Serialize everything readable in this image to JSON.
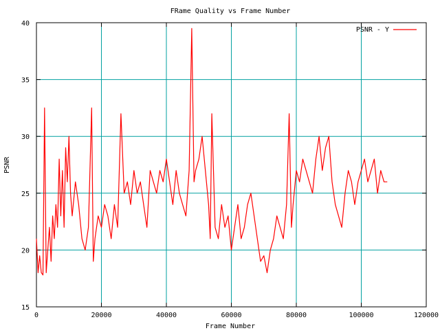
{
  "chart_data": {
    "type": "line",
    "title": "FRame Quality vs Frame Number",
    "xlabel": "Frame Number",
    "ylabel": "PSNR",
    "xlim": [
      0,
      120000
    ],
    "ylim": [
      15,
      40
    ],
    "x_ticks": [
      0,
      20000,
      40000,
      60000,
      80000,
      100000,
      120000
    ],
    "y_ticks": [
      15,
      20,
      25,
      30,
      35,
      40
    ],
    "x_tick_labels": [
      "0",
      "20000",
      "40000",
      "60000",
      "80000",
      "100000",
      "120000"
    ],
    "y_tick_labels": [
      "15",
      "20",
      "25",
      "30",
      "35",
      "40"
    ],
    "grid": true,
    "legend_position": "top-right",
    "colors": {
      "series": "#ff0000",
      "grid": "#00a0a0",
      "axes": "#000000",
      "background": "#ffffff"
    },
    "series": [
      {
        "name": "PSNR - Y",
        "x": [
          0,
          500,
          1000,
          1500,
          2000,
          2500,
          3000,
          3500,
          4000,
          4500,
          5000,
          5500,
          6000,
          6500,
          7000,
          7500,
          8000,
          8500,
          9000,
          9500,
          10000,
          10500,
          11000,
          12000,
          13000,
          14000,
          15000,
          16000,
          17000,
          17500,
          18000,
          19000,
          20000,
          21000,
          22000,
          23000,
          24000,
          25000,
          26000,
          27000,
          28000,
          29000,
          30000,
          31000,
          32000,
          33000,
          34000,
          35000,
          36000,
          37000,
          38000,
          39000,
          40000,
          41000,
          42000,
          43000,
          44000,
          45000,
          46000,
          47000,
          47800,
          48500,
          49000,
          50000,
          51000,
          52000,
          53000,
          53500,
          54000,
          55000,
          56000,
          57000,
          58000,
          59000,
          60000,
          61000,
          62000,
          63000,
          64000,
          65000,
          66000,
          67000,
          68000,
          69000,
          70000,
          71000,
          72000,
          73000,
          74000,
          75000,
          76000,
          77000,
          77800,
          78500,
          79000,
          80000,
          81000,
          82000,
          83000,
          84000,
          85000,
          86000,
          87000,
          88000,
          89000,
          90000,
          91000,
          92000,
          93000,
          94000,
          95000,
          96000,
          97000,
          98000,
          99000,
          100000,
          101000,
          102000,
          103000,
          104000,
          105000,
          106000,
          107000,
          108000
        ],
        "values": [
          21,
          18,
          19.5,
          18,
          17.8,
          32.5,
          18,
          20,
          22,
          19,
          23,
          21,
          24,
          22,
          28,
          23,
          27,
          22,
          29,
          26,
          30,
          25,
          23,
          26,
          24,
          21,
          20,
          22,
          32.5,
          19,
          21,
          23,
          22,
          24,
          23,
          21,
          24,
          22,
          32,
          25,
          26,
          24,
          27,
          25,
          26,
          24,
          22,
          27,
          26,
          25,
          27,
          26,
          28,
          26,
          24,
          27,
          25,
          24,
          23,
          27,
          39.5,
          26,
          27,
          28,
          30,
          27,
          24,
          21,
          32,
          22,
          21,
          24,
          22,
          23,
          20,
          22,
          24,
          21,
          22,
          24,
          25,
          23,
          21,
          19,
          19.5,
          18,
          20,
          21,
          23,
          22,
          21,
          24,
          32,
          22,
          24,
          27,
          26,
          28,
          27,
          26,
          25,
          28,
          30,
          27,
          29,
          30,
          26,
          24,
          23,
          22,
          25,
          27,
          26,
          24,
          26,
          27,
          28,
          26,
          27,
          28,
          25,
          27,
          26,
          26
        ]
      }
    ]
  }
}
